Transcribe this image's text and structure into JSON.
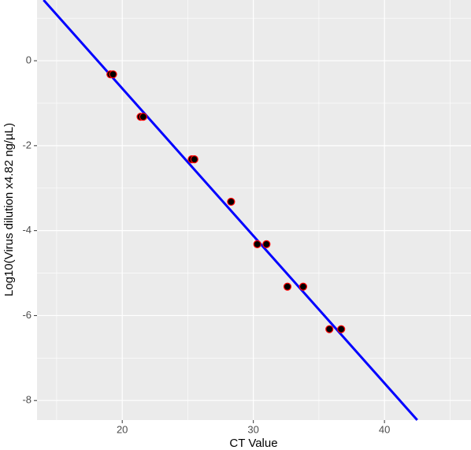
{
  "chart_data": {
    "type": "scatter",
    "x_label": "CT Value",
    "y_label": "Log10(Virus dilution x4.82 ng/µL)",
    "xlim": [
      13.5,
      46.6
    ],
    "ylim": [
      -8.46,
      1.43
    ],
    "xticks": [
      20,
      30,
      40
    ],
    "yticks": [
      0,
      -2,
      -4,
      -6,
      -8
    ],
    "x_minor_grid": [
      15,
      25,
      35,
      45
    ],
    "y_minor_grid": [
      1,
      -1,
      -3,
      -5,
      -7
    ],
    "grid": true,
    "panel_color": "#ebebeb",
    "points": {
      "x": [
        19.1,
        19.3,
        21.4,
        21.6,
        25.3,
        25.5,
        28.3,
        30.3,
        31.0,
        32.6,
        33.8,
        35.8,
        36.7
      ],
      "y": [
        -0.32,
        -0.32,
        -1.32,
        -1.32,
        -2.32,
        -2.32,
        -3.32,
        -4.32,
        -4.32,
        -5.32,
        -5.32,
        -6.32,
        -6.32
      ],
      "color": "#000000",
      "edge_color": "#ff0000"
    },
    "fit_line": {
      "x": [
        14.0,
        42.5
      ],
      "y": [
        1.43,
        -8.46
      ],
      "color": "#0000ff"
    }
  }
}
